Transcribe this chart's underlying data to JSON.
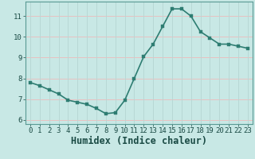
{
  "x": [
    0,
    1,
    2,
    3,
    4,
    5,
    6,
    7,
    8,
    9,
    10,
    11,
    12,
    13,
    14,
    15,
    16,
    17,
    18,
    19,
    20,
    21,
    22,
    23
  ],
  "y": [
    7.8,
    7.65,
    7.45,
    7.25,
    6.95,
    6.85,
    6.75,
    6.55,
    6.3,
    6.35,
    6.95,
    8.0,
    9.05,
    9.65,
    10.5,
    11.35,
    11.35,
    11.0,
    10.25,
    9.95,
    9.65,
    9.65,
    9.55,
    9.45
  ],
  "xlabel": "Humidex (Indice chaleur)",
  "ylim": [
    5.8,
    11.7
  ],
  "xlim": [
    -0.5,
    23.5
  ],
  "yticks": [
    6,
    7,
    8,
    9,
    10,
    11
  ],
  "xticks": [
    0,
    1,
    2,
    3,
    4,
    5,
    6,
    7,
    8,
    9,
    10,
    11,
    12,
    13,
    14,
    15,
    16,
    17,
    18,
    19,
    20,
    21,
    22,
    23
  ],
  "line_color": "#2e7d72",
  "bg_color": "#c8e8e5",
  "grid_color_h": "#e8c0c0",
  "grid_color_v": "#b8d8d5",
  "tick_label_fontsize": 6.5,
  "xlabel_fontsize": 8.5,
  "line_width": 1.2,
  "marker_size": 2.8
}
